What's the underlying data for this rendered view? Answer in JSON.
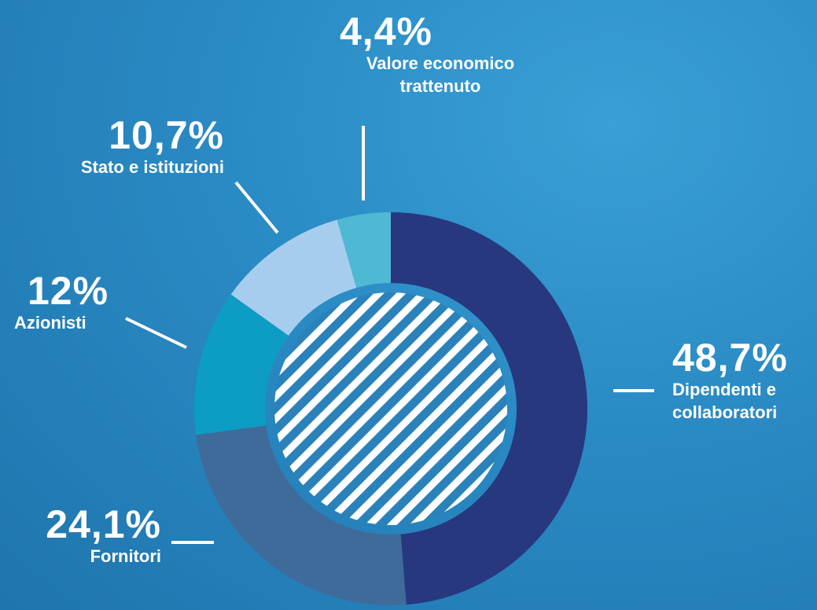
{
  "chart_data": {
    "type": "donut",
    "categories": [
      "Dipendenti e collaboratori",
      "Fornitori",
      "Azionisti",
      "Stato e istituzioni",
      "Valore economico trattenuto"
    ],
    "values": [
      48.7,
      24.1,
      12,
      10.7,
      4.4
    ],
    "value_labels": [
      "48,7%",
      "24,1%",
      "12%",
      "10,7%",
      "4,4%"
    ],
    "colors": [
      "#27387f",
      "#3f6b9a",
      "#0d9cc4",
      "#a7cdee",
      "#4fb8d3"
    ]
  }
}
